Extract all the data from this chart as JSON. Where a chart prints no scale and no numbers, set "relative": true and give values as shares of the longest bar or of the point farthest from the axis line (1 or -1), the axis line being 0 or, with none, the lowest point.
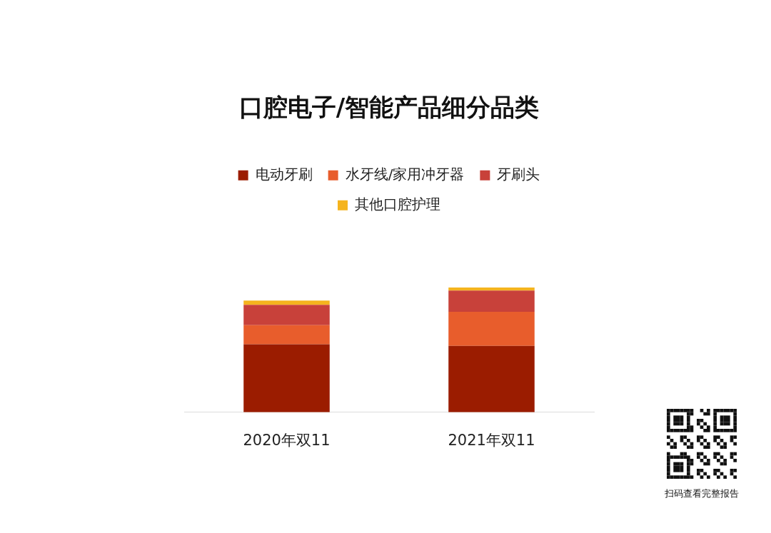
{
  "chart_data": {
    "type": "bar",
    "title": "口腔电子/智能产品细分品类",
    "categories": [
      "2020年双11",
      "2021年双11"
    ],
    "stacked": true,
    "relative": true,
    "legend": "top",
    "grid": false,
    "series": [
      {
        "name": "电动牙刷",
        "color": "#9b1c00",
        "values": [
          0.545,
          0.532
        ]
      },
      {
        "name": "水牙线/家用冲牙器",
        "color": "#e85d2c",
        "values": [
          0.153,
          0.272
        ]
      },
      {
        "name": "牙刷头",
        "color": "#c8413a",
        "values": [
          0.162,
          0.17
        ]
      },
      {
        "name": "其他口腔护理",
        "color": "#f5b41e",
        "values": [
          0.034,
          0.026
        ]
      }
    ],
    "annotations": [
      "扫码查看完整报告"
    ]
  }
}
